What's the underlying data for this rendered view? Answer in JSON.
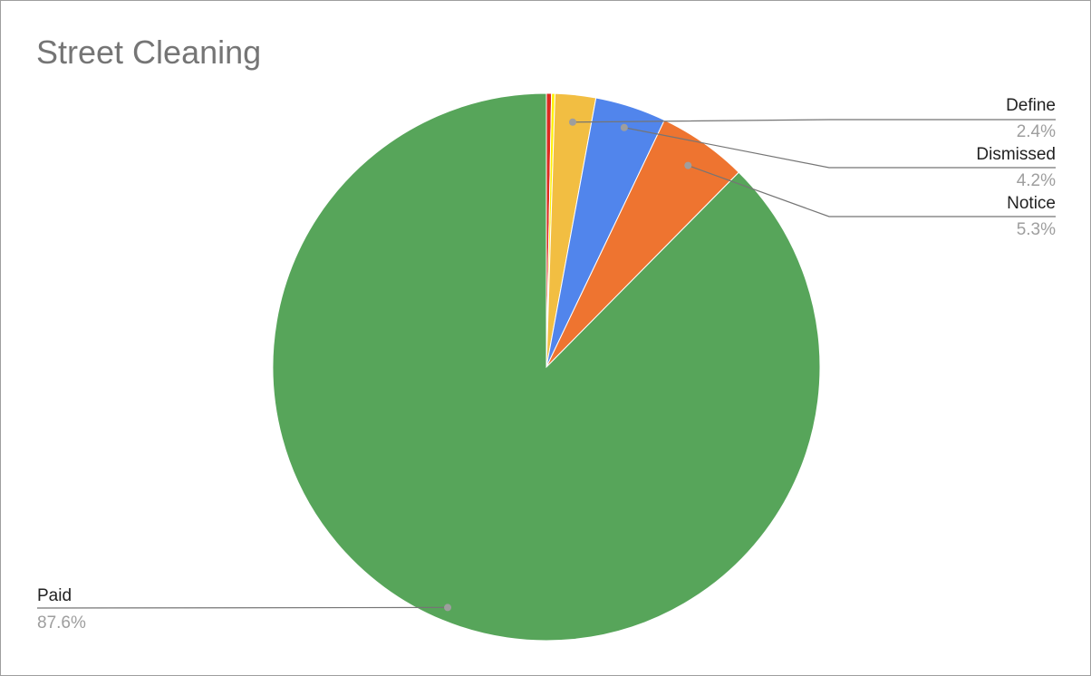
{
  "chart_data": {
    "type": "pie",
    "title": "Street Cleaning",
    "slices": [
      {
        "name": "Paid",
        "value": 87.6,
        "label": "87.6%",
        "color": "#57a55a",
        "show_label": true
      },
      {
        "name": "",
        "value": 0.3,
        "label": "",
        "color": "#dd2a1f",
        "show_label": false
      },
      {
        "name": "",
        "value": 0.2,
        "label": "",
        "color": "#fff200",
        "show_label": false
      },
      {
        "name": "Define",
        "value": 2.4,
        "label": "2.4%",
        "color": "#f2be42",
        "show_label": true
      },
      {
        "name": "Dismissed",
        "value": 4.2,
        "label": "4.2%",
        "color": "#5185ec",
        "show_label": true
      },
      {
        "name": "Notice",
        "value": 5.3,
        "label": "5.3%",
        "color": "#ee7430",
        "show_label": true
      }
    ],
    "legend": "none"
  }
}
